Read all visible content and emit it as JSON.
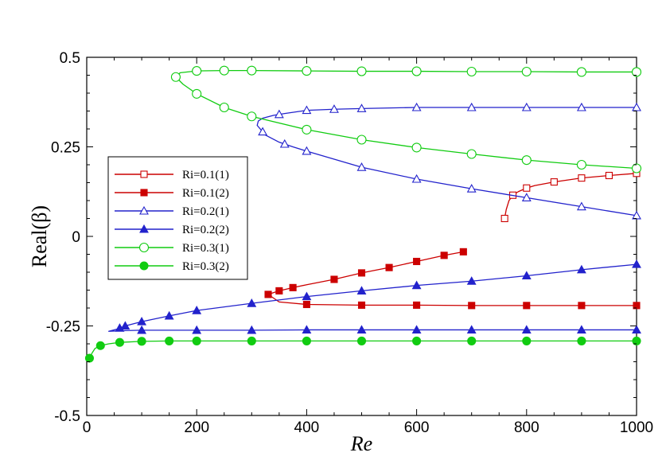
{
  "chart_data": {
    "type": "line",
    "xlabel": "Re",
    "ylabel": "Real(β)",
    "xlim": [
      0,
      1000
    ],
    "ylim": [
      -0.5,
      0.5
    ],
    "xticks": [
      "0",
      "200",
      "400",
      "600",
      "800",
      "1000"
    ],
    "yticks": [
      "0.5",
      "0.25",
      "0",
      "-0.25",
      "-0.5"
    ],
    "legend_position": "left",
    "grid": false,
    "series": [
      {
        "name": "Ri=0.1(1)",
        "color": "#cc0000",
        "marker": "square-open",
        "x": [
          760,
          763,
          768,
          775,
          785,
          800,
          815,
          850,
          900,
          950,
          1000
        ],
        "y": [
          0.05,
          0.075,
          0.1,
          0.115,
          0.125,
          0.135,
          0.142,
          0.152,
          0.163,
          0.17,
          0.176
        ],
        "marker_x": [
          760,
          775,
          800,
          850,
          900,
          950,
          1000
        ]
      },
      {
        "name": "Ri=0.1(2)",
        "color": "#cc0000",
        "marker": "square-filled",
        "x": [
          685,
          650,
          600,
          550,
          500,
          450,
          400,
          375,
          350,
          330,
          350,
          400,
          500,
          600,
          700,
          800,
          900,
          1000
        ],
        "y": [
          -0.043,
          -0.053,
          -0.07,
          -0.087,
          -0.102,
          -0.12,
          -0.135,
          -0.143,
          -0.152,
          -0.162,
          -0.183,
          -0.19,
          -0.192,
          -0.192,
          -0.193,
          -0.193,
          -0.193,
          -0.193
        ],
        "marker_x": [
          685,
          650,
          600,
          550,
          500,
          450,
          375,
          330,
          350,
          400,
          500,
          600,
          700,
          800,
          900,
          1000
        ]
      },
      {
        "name": "Ri=0.2(1)",
        "color": "#2222cc",
        "marker": "triangle-open",
        "x": [
          1000,
          900,
          800,
          700,
          600,
          500,
          400,
          375,
          350,
          325,
          310,
          312,
          320,
          340,
          360,
          400,
          450,
          500,
          600,
          700,
          800,
          900,
          1000
        ],
        "y": [
          0.058,
          0.083,
          0.108,
          0.133,
          0.16,
          0.193,
          0.238,
          0.25,
          0.263,
          0.283,
          0.31,
          0.322,
          0.33,
          0.338,
          0.343,
          0.352,
          0.355,
          0.357,
          0.36,
          0.36,
          0.36,
          0.36,
          0.36
        ],
        "marker_x": [
          1000,
          900,
          800,
          700,
          600,
          500,
          400,
          360,
          320,
          350,
          400,
          450,
          500,
          600,
          700,
          800,
          900,
          1000
        ]
      },
      {
        "name": "Ri=0.2(2)",
        "color": "#2222cc",
        "marker": "triangle-filled",
        "x": [
          1000,
          900,
          800,
          700,
          600,
          500,
          400,
          300,
          200,
          150,
          100,
          70,
          55,
          40,
          55,
          70,
          100,
          200,
          300,
          400,
          500,
          600,
          700,
          800,
          900,
          1000
        ],
        "y": [
          -0.078,
          -0.093,
          -0.11,
          -0.125,
          -0.137,
          -0.152,
          -0.168,
          -0.187,
          -0.207,
          -0.222,
          -0.238,
          -0.25,
          -0.259,
          -0.265,
          -0.264,
          -0.263,
          -0.262,
          -0.262,
          -0.262,
          -0.261,
          -0.261,
          -0.261,
          -0.261,
          -0.261,
          -0.261,
          -0.261
        ],
        "marker_x": [
          1000,
          900,
          800,
          700,
          600,
          500,
          400,
          300,
          200,
          150,
          100,
          70,
          60,
          100,
          200,
          300,
          400,
          500,
          600,
          700,
          800,
          900,
          1000
        ]
      },
      {
        "name": "Ri=0.3(1)",
        "color": "#11cc11",
        "marker": "circle-open",
        "x": [
          1000,
          900,
          800,
          700,
          600,
          500,
          400,
          300,
          250,
          200,
          175,
          162,
          170,
          200,
          250,
          300,
          400,
          500,
          600,
          700,
          800,
          900,
          1000
        ],
        "y": [
          0.19,
          0.2,
          0.213,
          0.23,
          0.248,
          0.27,
          0.298,
          0.335,
          0.36,
          0.398,
          0.425,
          0.445,
          0.457,
          0.462,
          0.463,
          0.463,
          0.462,
          0.461,
          0.461,
          0.46,
          0.46,
          0.459,
          0.459
        ],
        "marker_x": [
          1000,
          900,
          800,
          700,
          600,
          500,
          400,
          300,
          250,
          200,
          162,
          200,
          250,
          300,
          400,
          500,
          600,
          700,
          800,
          900,
          1000
        ]
      },
      {
        "name": "Ri=0.3(2)",
        "color": "#11cc11",
        "marker": "circle-filled",
        "x": [
          5,
          10,
          15,
          25,
          40,
          60,
          100,
          150,
          200,
          300,
          400,
          500,
          600,
          700,
          800,
          900,
          1000
        ],
        "y": [
          -0.34,
          -0.325,
          -0.313,
          -0.305,
          -0.3,
          -0.296,
          -0.293,
          -0.292,
          -0.292,
          -0.292,
          -0.292,
          -0.292,
          -0.292,
          -0.292,
          -0.292,
          -0.292,
          -0.292
        ],
        "marker_x": [
          5,
          25,
          60,
          100,
          150,
          200,
          300,
          400,
          500,
          600,
          700,
          800,
          900,
          1000
        ]
      }
    ]
  }
}
